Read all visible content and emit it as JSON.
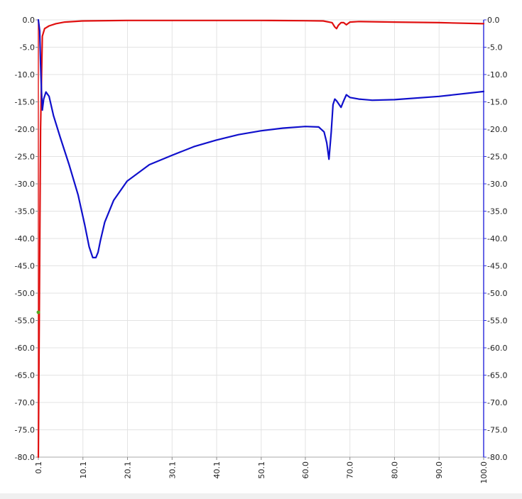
{
  "chart_data": {
    "type": "line",
    "title": "",
    "xlabel": "",
    "ylabel_left": "",
    "ylabel_right": "",
    "xlim": [
      0.1,
      100.0
    ],
    "ylim": [
      -80.0,
      0.0
    ],
    "grid": true,
    "x_tick_labels": [
      "0.1",
      "10.1",
      "20.1",
      "30.1",
      "40.1",
      "50.1",
      "60.0",
      "70.0",
      "80.0",
      "90.0",
      "100.0"
    ],
    "x_ticks": [
      0.1,
      10.1,
      20.1,
      30.1,
      40.1,
      50.1,
      60.0,
      70.0,
      80.0,
      90.0,
      100.0
    ],
    "y_ticks": [
      0.0,
      -5.0,
      -10.0,
      -15.0,
      -20.0,
      -25.0,
      -30.0,
      -35.0,
      -40.0,
      -45.0,
      -50.0,
      -55.0,
      -60.0,
      -65.0,
      -70.0,
      -75.0,
      -80.0
    ],
    "y_tick_labels": [
      "0.0",
      "-5.0",
      "-10.0",
      "-15.0",
      "-20.0",
      "-25.0",
      "-30.0",
      "-35.0",
      "-40.0",
      "-45.0",
      "-50.0",
      "-55.0",
      "-60.0",
      "-65.0",
      "-70.0",
      "-75.0",
      "-80.0"
    ],
    "left_axis_color": "#e02020",
    "right_axis_color": "#3333dd",
    "series": [
      {
        "color": "#e01010",
        "x": [
          0.1,
          0.3,
          0.6,
          1.0,
          1.5,
          2.5,
          4.0,
          6.0,
          10.0,
          20.0,
          30.0,
          40.0,
          50.0,
          60.0,
          64.0,
          66.0,
          66.6,
          67.0,
          67.4,
          68.0,
          68.6,
          69.2,
          70.0,
          72.0,
          80.0,
          90.0,
          100.0
        ],
        "y": [
          -80.0,
          -55.0,
          -20.0,
          -3.0,
          -1.6,
          -1.1,
          -0.7,
          -0.4,
          -0.2,
          -0.1,
          -0.1,
          -0.1,
          -0.1,
          -0.15,
          -0.2,
          -0.5,
          -1.3,
          -1.6,
          -1.0,
          -0.5,
          -0.5,
          -0.9,
          -0.4,
          -0.3,
          -0.4,
          -0.5,
          -0.7
        ]
      },
      {
        "color": "#1010cc",
        "x": [
          0.1,
          0.4,
          0.6,
          0.8,
          1.0,
          1.3,
          1.8,
          2.5,
          3.5,
          5.0,
          7.0,
          9.0,
          10.5,
          11.5,
          12.3,
          13.0,
          13.5,
          14.0,
          15.0,
          17.0,
          20.0,
          25.0,
          30.0,
          35.0,
          40.0,
          45.0,
          50.0,
          55.0,
          60.0,
          63.0,
          64.2,
          64.8,
          65.3,
          65.8,
          66.2,
          66.6,
          67.0,
          68.0,
          68.6,
          69.2,
          70.0,
          72.0,
          75.0,
          80.0,
          90.0,
          100.0
        ],
        "y": [
          0.0,
          -2.0,
          -8.0,
          -13.0,
          -16.5,
          -14.5,
          -13.2,
          -14.0,
          -17.5,
          -21.5,
          -26.5,
          -32.0,
          -37.5,
          -41.5,
          -43.5,
          -43.5,
          -42.5,
          -40.5,
          -37.0,
          -33.0,
          -29.5,
          -26.5,
          -24.8,
          -23.2,
          -22.0,
          -21.0,
          -20.3,
          -19.8,
          -19.5,
          -19.6,
          -20.5,
          -22.5,
          -25.5,
          -20.5,
          -15.5,
          -14.5,
          -14.8,
          -16.0,
          -14.8,
          -13.7,
          -14.2,
          -14.5,
          -14.7,
          -14.6,
          -14.0,
          -13.1
        ]
      }
    ],
    "markers": [
      {
        "color": "#55aa22",
        "x": 0.1,
        "y": -53.5
      }
    ]
  }
}
